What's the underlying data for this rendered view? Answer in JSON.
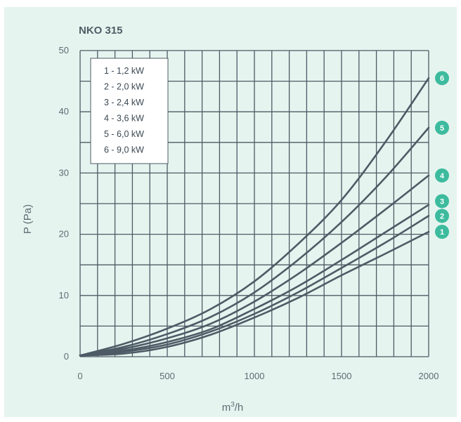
{
  "chart_data": {
    "type": "line",
    "title": "NKO 315",
    "xlabel_base": "m",
    "xlabel_sup": "3",
    "xlabel_tail": "/h",
    "ylabel": "P (Pa)",
    "xlim": [
      0,
      2000
    ],
    "ylim": [
      0,
      50
    ],
    "x_ticks": [
      0,
      500,
      1000,
      1500,
      2000
    ],
    "y_ticks": [
      0,
      10,
      20,
      30,
      40,
      50
    ],
    "grid": true,
    "legend_placement": "top-left",
    "colors": {
      "background": "#e6f4ef",
      "grid": "#4d5b66",
      "line": "#4d5b66",
      "badge": "#3dbb9e"
    },
    "series": [
      {
        "badge": "1",
        "legend": "1 - 1,2 kW",
        "x": [
          0,
          250,
          500,
          750,
          1000,
          1250,
          1500,
          1750,
          2000
        ],
        "y": [
          0.2,
          0.5,
          1.6,
          3.6,
          6.4,
          9.6,
          13.3,
          16.8,
          20.4
        ]
      },
      {
        "badge": "2",
        "legend": "2 - 2,0 kW",
        "x": [
          0,
          250,
          500,
          750,
          1000,
          1250,
          1500,
          1750,
          2000
        ],
        "y": [
          0.2,
          0.8,
          2.0,
          4.1,
          7.0,
          10.5,
          14.5,
          18.6,
          23.0
        ]
      },
      {
        "badge": "3",
        "legend": "3 - 2,4 kW",
        "x": [
          0,
          250,
          500,
          750,
          1000,
          1250,
          1500,
          1750,
          2000
        ],
        "y": [
          0.2,
          1.0,
          2.4,
          4.5,
          7.8,
          11.5,
          15.8,
          20.3,
          24.8
        ]
      },
      {
        "badge": "4",
        "legend": "4 - 3,6 kW",
        "x": [
          0,
          250,
          500,
          750,
          1000,
          1250,
          1500,
          1750,
          2000
        ],
        "y": [
          0.2,
          1.3,
          3.0,
          5.4,
          9.0,
          13.5,
          18.6,
          24.0,
          29.6
        ]
      },
      {
        "badge": "5",
        "legend": "5 - 6,0 kW",
        "x": [
          0,
          250,
          500,
          750,
          1000,
          1250,
          1500,
          1750,
          2000
        ],
        "y": [
          0.2,
          1.6,
          3.7,
          6.5,
          10.5,
          15.8,
          22.0,
          29.2,
          37.4
        ]
      },
      {
        "badge": "6",
        "legend": "6 - 9,0 kW",
        "x": [
          0,
          250,
          500,
          750,
          1000,
          1250,
          1500,
          1750,
          2000
        ],
        "y": [
          0.2,
          2.1,
          4.6,
          7.8,
          12.3,
          18.4,
          25.6,
          35.0,
          45.5
        ]
      }
    ]
  }
}
